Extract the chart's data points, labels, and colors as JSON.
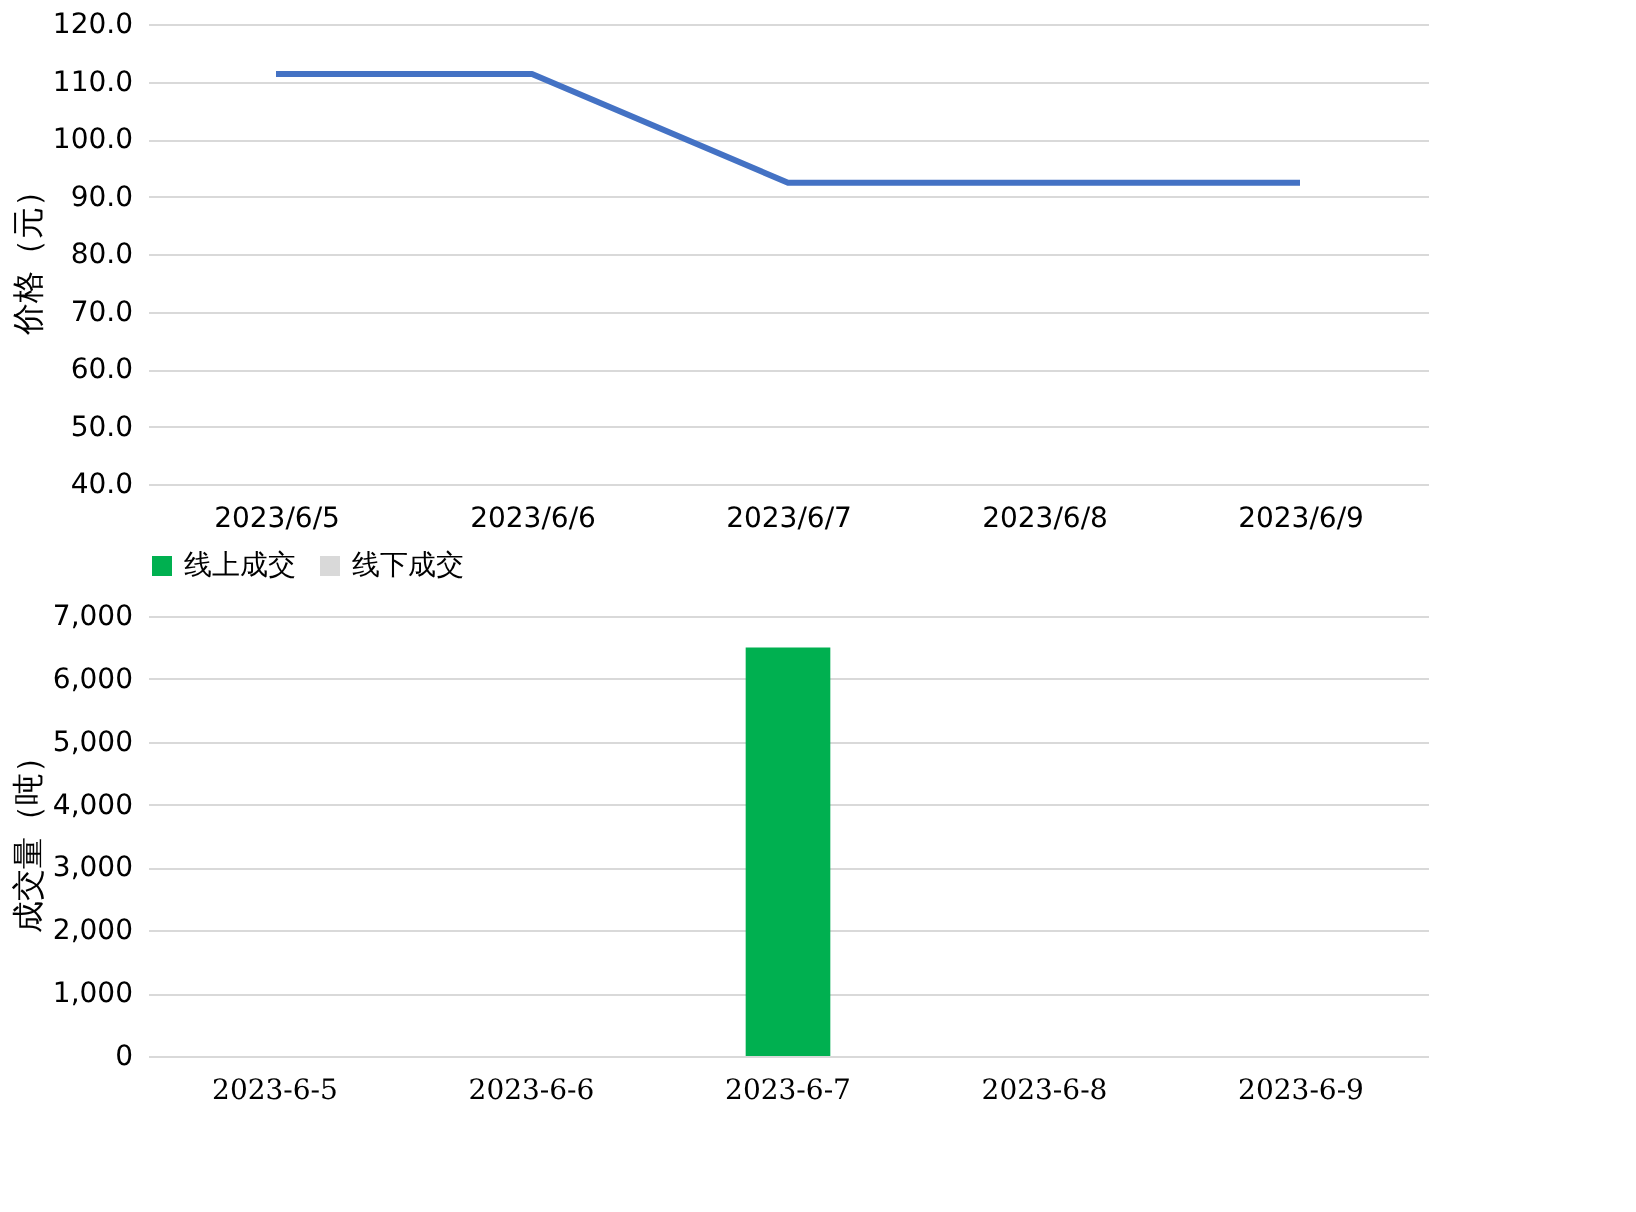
{
  "chart_data": [
    {
      "type": "line",
      "ylabel": "价格（元）",
      "categories": [
        "2023/6/5",
        "2023/6/6",
        "2023/6/7",
        "2023/6/8",
        "2023/6/9"
      ],
      "series": [
        {
          "color": "#4472c4",
          "values": [
            111.3,
            111.3,
            92.4,
            92.4,
            92.4
          ]
        }
      ],
      "ylim": [
        40,
        120
      ],
      "yticks": [
        {
          "value": 40,
          "label": "40.0"
        },
        {
          "value": 50,
          "label": "50.0"
        },
        {
          "value": 60,
          "label": "60.0"
        },
        {
          "value": 70,
          "label": "70.0"
        },
        {
          "value": 80,
          "label": "80.0"
        },
        {
          "value": 90,
          "label": "90.0"
        },
        {
          "value": 100,
          "label": "100.0"
        },
        {
          "value": 110,
          "label": "110.0"
        },
        {
          "value": 120,
          "label": "120.0"
        }
      ],
      "grid": "y",
      "marker": "none",
      "line_style": "solid"
    },
    {
      "type": "bar",
      "ylabel": "成交量（吨）",
      "categories": [
        "2023-6-5",
        "2023-6-6",
        "2023-6-7",
        "2023-6-8",
        "2023-6-9"
      ],
      "series": [
        {
          "name": "线上成交",
          "color": "#00b050",
          "values": [
            0,
            0,
            6500,
            0,
            0
          ]
        },
        {
          "name": "线下成交",
          "color": "#d9d9d9",
          "values": [
            0,
            0,
            0,
            0,
            0
          ]
        }
      ],
      "stacked": true,
      "ylim": [
        0,
        7000
      ],
      "yticks": [
        0,
        {
          "value": 1000,
          "label": "1,000"
        },
        {
          "value": 2000,
          "label": "2,000"
        },
        {
          "value": 3000,
          "label": "3,000"
        },
        {
          "value": 4000,
          "label": "4,000"
        },
        {
          "value": 5000,
          "label": "5,000"
        },
        {
          "value": 6000,
          "label": "6,000"
        },
        {
          "value": 7000,
          "label": "7,000"
        }
      ],
      "grid": "y",
      "legend": "top"
    }
  ]
}
